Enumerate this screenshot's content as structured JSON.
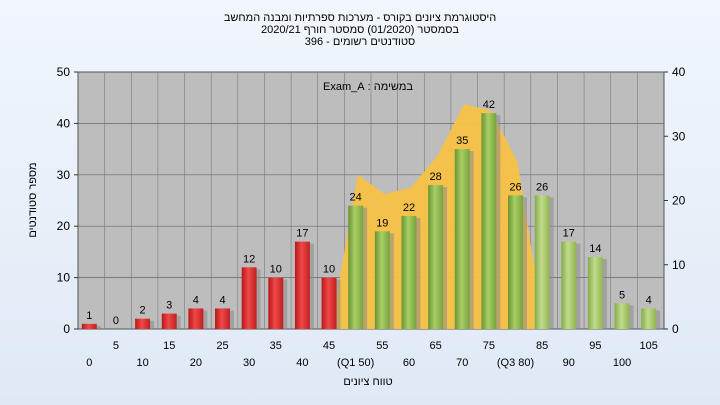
{
  "title_lines": [
    "היסטוגרמת ציונים בקורס - מערכות ספרתיות ומבנה המחשב",
    "בסמסטר   (01/2020)  סמסטר חורף  2020/21",
    "סטודנטים רשומים - 396"
  ],
  "assignment_label": "במשימה : Exam_A",
  "chart_data": {
    "type": "bar",
    "title": "היסטוגרמת ציונים בקורס - מערכות ספרתיות ומבנה המחשב",
    "subtitle": "בסמסטר (01/2020) סמסטר חורף 2020/21 | סטודנטים רשומים - 396",
    "xlabel": "טווח ציונים",
    "ylabel": "מספר סטודנטים",
    "ylim": [
      0,
      50
    ],
    "y_ticks": [
      0,
      10,
      20,
      30,
      40,
      50
    ],
    "y2lim": [
      0,
      40
    ],
    "y2_ticks": [
      0,
      10,
      20,
      30,
      40
    ],
    "grid": true,
    "categories": [
      0,
      5,
      10,
      15,
      20,
      25,
      30,
      35,
      40,
      45,
      50,
      55,
      60,
      65,
      70,
      75,
      80,
      85,
      90,
      95,
      100,
      105
    ],
    "category_labels": [
      "0",
      "5",
      "10",
      "15",
      "20",
      "25",
      "30",
      "35",
      "40",
      "45",
      "(Q1 50)",
      "55",
      "60",
      "65",
      "70",
      "75",
      "(Q3 80)",
      "85",
      "90",
      "95",
      "100",
      "105"
    ],
    "values": [
      1,
      0,
      2,
      3,
      4,
      4,
      12,
      10,
      17,
      10,
      24,
      19,
      22,
      28,
      35,
      42,
      26,
      26,
      17,
      14,
      5,
      4
    ],
    "bar_colors_by_range": {
      "below_50": "#e03030",
      "from_50_to_80": "#8cb84c",
      "above_80": "#a6c66a"
    },
    "area_series": {
      "color": "#f7c244",
      "x": [
        45,
        50,
        55,
        60,
        65,
        70,
        75,
        80,
        85
      ],
      "values": [
        0,
        24,
        21,
        22,
        27,
        35,
        34,
        26,
        0
      ]
    }
  }
}
